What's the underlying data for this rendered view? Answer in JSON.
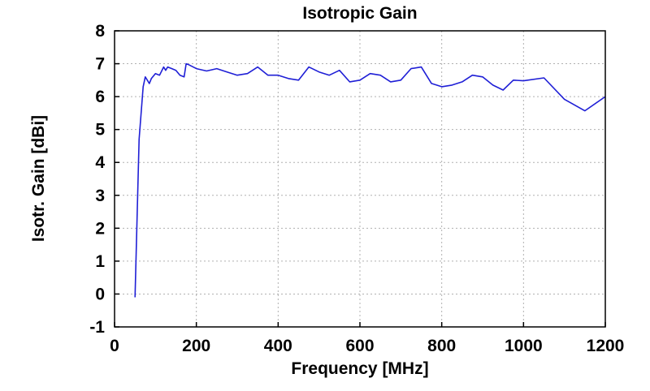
{
  "chart_data": {
    "type": "line",
    "title": "Isotropic Gain",
    "xlabel": "Frequency [MHz]",
    "ylabel": "Isotr. Gain [dBi]",
    "xlim": [
      0,
      1200
    ],
    "ylim": [
      -1,
      8
    ],
    "xticks": [
      0,
      200,
      400,
      600,
      800,
      1000,
      1200
    ],
    "yticks": [
      -1,
      0,
      1,
      2,
      3,
      4,
      5,
      6,
      7,
      8
    ],
    "xtick_labels": [
      "0",
      "200",
      "400",
      "600",
      "800",
      "1000",
      "1200"
    ],
    "ytick_labels": [
      "-1",
      "0",
      "1",
      "2",
      "3",
      "4",
      "5",
      "6",
      "7",
      "8"
    ],
    "grid": true,
    "series": [
      {
        "color": "#1f1fd6",
        "x": [
          50,
          60,
          70,
          75,
          80,
          85,
          90,
          100,
          110,
          120,
          125,
          130,
          140,
          150,
          160,
          170,
          175,
          180,
          200,
          225,
          250,
          275,
          300,
          325,
          350,
          375,
          400,
          425,
          450,
          475,
          500,
          525,
          550,
          575,
          600,
          625,
          650,
          675,
          700,
          725,
          750,
          775,
          800,
          825,
          850,
          875,
          900,
          925,
          950,
          975,
          1000,
          1050,
          1100,
          1150,
          1200
        ],
        "y": [
          -0.1,
          4.7,
          6.3,
          6.6,
          6.5,
          6.4,
          6.55,
          6.7,
          6.65,
          6.9,
          6.8,
          6.9,
          6.85,
          6.8,
          6.65,
          6.6,
          7.0,
          6.98,
          6.85,
          6.78,
          6.85,
          6.75,
          6.65,
          6.7,
          6.9,
          6.65,
          6.65,
          6.55,
          6.5,
          6.9,
          6.75,
          6.65,
          6.8,
          6.45,
          6.5,
          6.7,
          6.65,
          6.45,
          6.5,
          6.85,
          6.9,
          6.4,
          6.3,
          6.35,
          6.45,
          6.65,
          6.6,
          6.35,
          6.2,
          6.5,
          6.48,
          6.57,
          5.92,
          5.57,
          6.0
        ]
      }
    ]
  }
}
